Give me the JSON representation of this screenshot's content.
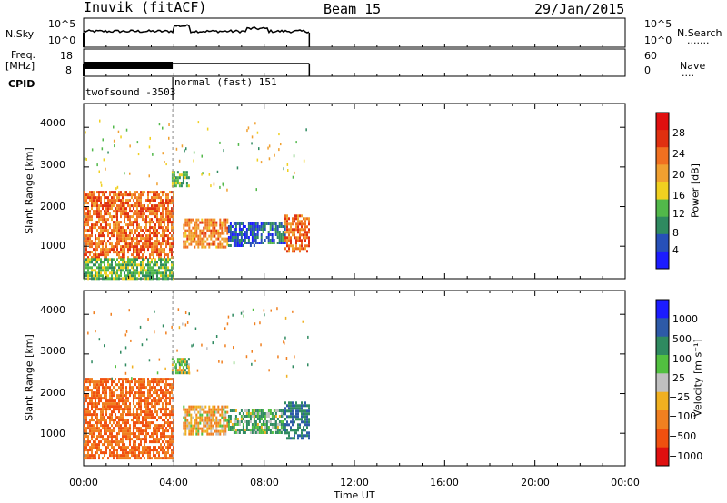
{
  "header": {
    "station": "Inuvik (fitACF)",
    "beam": "Beam 15",
    "date": "29/Jan/2015"
  },
  "left_labels": {
    "nsky": "N.Sky",
    "freq": "Freq.",
    "freq_unit": "[MHz]",
    "cpid": "CPID"
  },
  "right_labels": {
    "nsearch": "N.Search",
    "nsearch_dots": ".......",
    "nave": "Nave",
    "nave_dots": "...."
  },
  "nsky_axis": {
    "left_ticks": [
      "10^5",
      "10^0"
    ],
    "right_ticks": [
      "10^5",
      "10^0"
    ]
  },
  "freq_axis": {
    "left_ticks": [
      "18",
      "8"
    ],
    "right_ticks": [
      "60",
      "0"
    ]
  },
  "cpid": [
    {
      "label": "twofsound -3503",
      "start_hour": 0,
      "end_hour": 3.95
    },
    {
      "label": "normal (fast) 151",
      "start_hour": 3.95,
      "end_hour": 10
    }
  ],
  "x_axis": {
    "label": "Time UT",
    "ticks": [
      "00:00",
      "04:00",
      "08:00",
      "12:00",
      "16:00",
      "20:00",
      "00:00"
    ],
    "range_hours": [
      0,
      24
    ]
  },
  "y_axis": {
    "label": "Slant Range [km]",
    "ticks": [
      "1000",
      "2000",
      "3000",
      "4000"
    ],
    "range_km": [
      180,
      4600
    ]
  },
  "power_scale": {
    "label": "Power [dB]",
    "ticks": [
      "4",
      "8",
      "12",
      "16",
      "20",
      "24",
      "28"
    ],
    "colors": [
      "#1c1cff",
      "#2750b8",
      "#2f8a60",
      "#52b84a",
      "#f0d020",
      "#f0a030",
      "#f07020",
      "#e03010",
      "#e01010"
    ]
  },
  "velocity_scale": {
    "label": "Velocity [m s⁻¹]",
    "ticks": [
      "1000",
      "500",
      "100",
      "25",
      "−25",
      "−100",
      "−500",
      "−1000"
    ],
    "colors": [
      "#1c1cff",
      "#2d5aa8",
      "#2f8a60",
      "#52c040",
      "#c0c0c0",
      "#f0b020",
      "#f08020",
      "#f05010",
      "#e01010"
    ]
  },
  "chart_data": {
    "type": "heatmap",
    "title": "Inuvik (fitACF) Beam 15 29/Jan/2015",
    "xlabel": "Time UT",
    "ylabel": "Slant Range [km]",
    "x_range_hours": [
      0,
      24
    ],
    "y_range_km": [
      180,
      4600
    ],
    "data_end_hour": 10,
    "power_regions": [
      {
        "t": [
          0.0,
          4.0
        ],
        "r": [
          700,
          2400
        ],
        "dB": 26
      },
      {
        "t": [
          0.0,
          4.0
        ],
        "r": [
          200,
          700
        ],
        "dB": 14
      },
      {
        "t": [
          3.9,
          4.7
        ],
        "r": [
          2500,
          2900
        ],
        "dB": 14
      },
      {
        "t": [
          4.4,
          6.4
        ],
        "r": [
          1000,
          1700
        ],
        "dB": 24
      },
      {
        "t": [
          6.4,
          7.6
        ],
        "r": [
          1000,
          1600
        ],
        "dB": 6
      },
      {
        "t": [
          7.6,
          8.9
        ],
        "r": [
          1100,
          1600
        ],
        "dB": 8
      },
      {
        "t": [
          8.9,
          10.0
        ],
        "r": [
          900,
          1800
        ],
        "dB": 26
      }
    ],
    "velocity_regions": [
      {
        "t": [
          0.0,
          4.0
        ],
        "r": [
          400,
          2400
        ],
        "v": -500
      },
      {
        "t": [
          3.9,
          4.7
        ],
        "r": [
          2500,
          2900
        ],
        "v": 25
      },
      {
        "t": [
          4.4,
          6.4
        ],
        "r": [
          1000,
          1700
        ],
        "v": -100
      },
      {
        "t": [
          6.4,
          8.9
        ],
        "r": [
          1000,
          1600
        ],
        "v": 100
      },
      {
        "t": [
          8.9,
          10.0
        ],
        "r": [
          900,
          1800
        ],
        "v": 500
      }
    ]
  }
}
